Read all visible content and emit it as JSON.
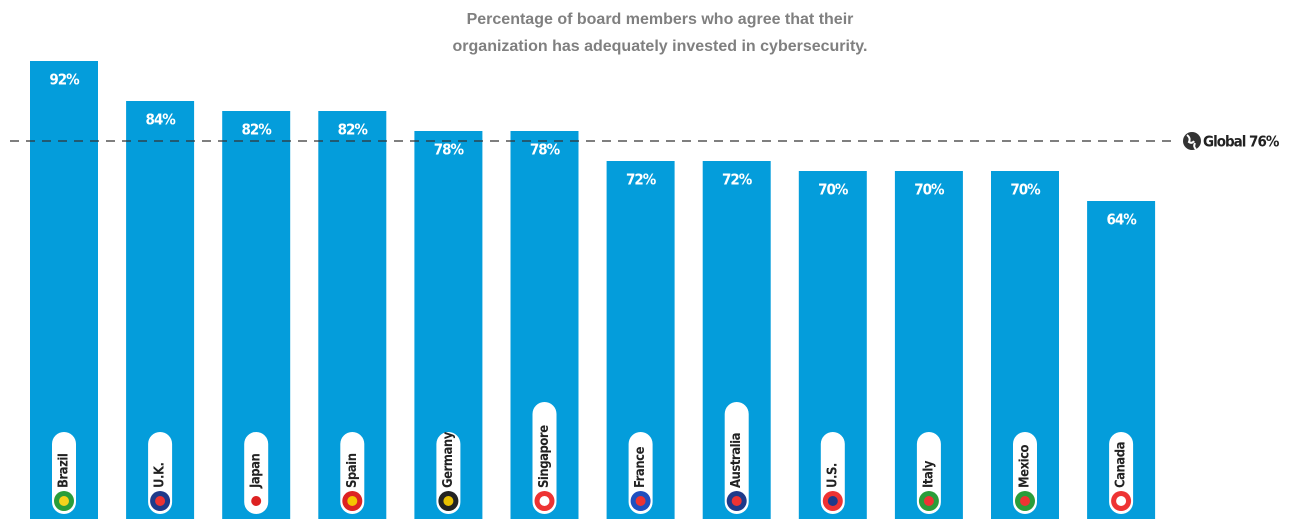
{
  "chart_data": {
    "type": "bar",
    "title_lines": [
      "Percentage of board members who agree that their",
      "organization has adequately invested in cybersecurity."
    ],
    "categories": [
      "Brazil",
      "U.K.",
      "Japan",
      "Spain",
      "Germany",
      "Singapore",
      "France",
      "Australia",
      "U.S.",
      "Italy",
      "Mexico",
      "Canada"
    ],
    "values": [
      92,
      84,
      82,
      82,
      78,
      78,
      72,
      72,
      70,
      70,
      70,
      64
    ],
    "value_labels": [
      "92%",
      "84%",
      "82%",
      "82%",
      "78%",
      "78%",
      "72%",
      "72%",
      "70%",
      "70%",
      "70%",
      "64%"
    ],
    "color": "#049ddb",
    "ylim": [
      0,
      100
    ],
    "reference": {
      "value": 76,
      "label": "Global 76%"
    }
  }
}
